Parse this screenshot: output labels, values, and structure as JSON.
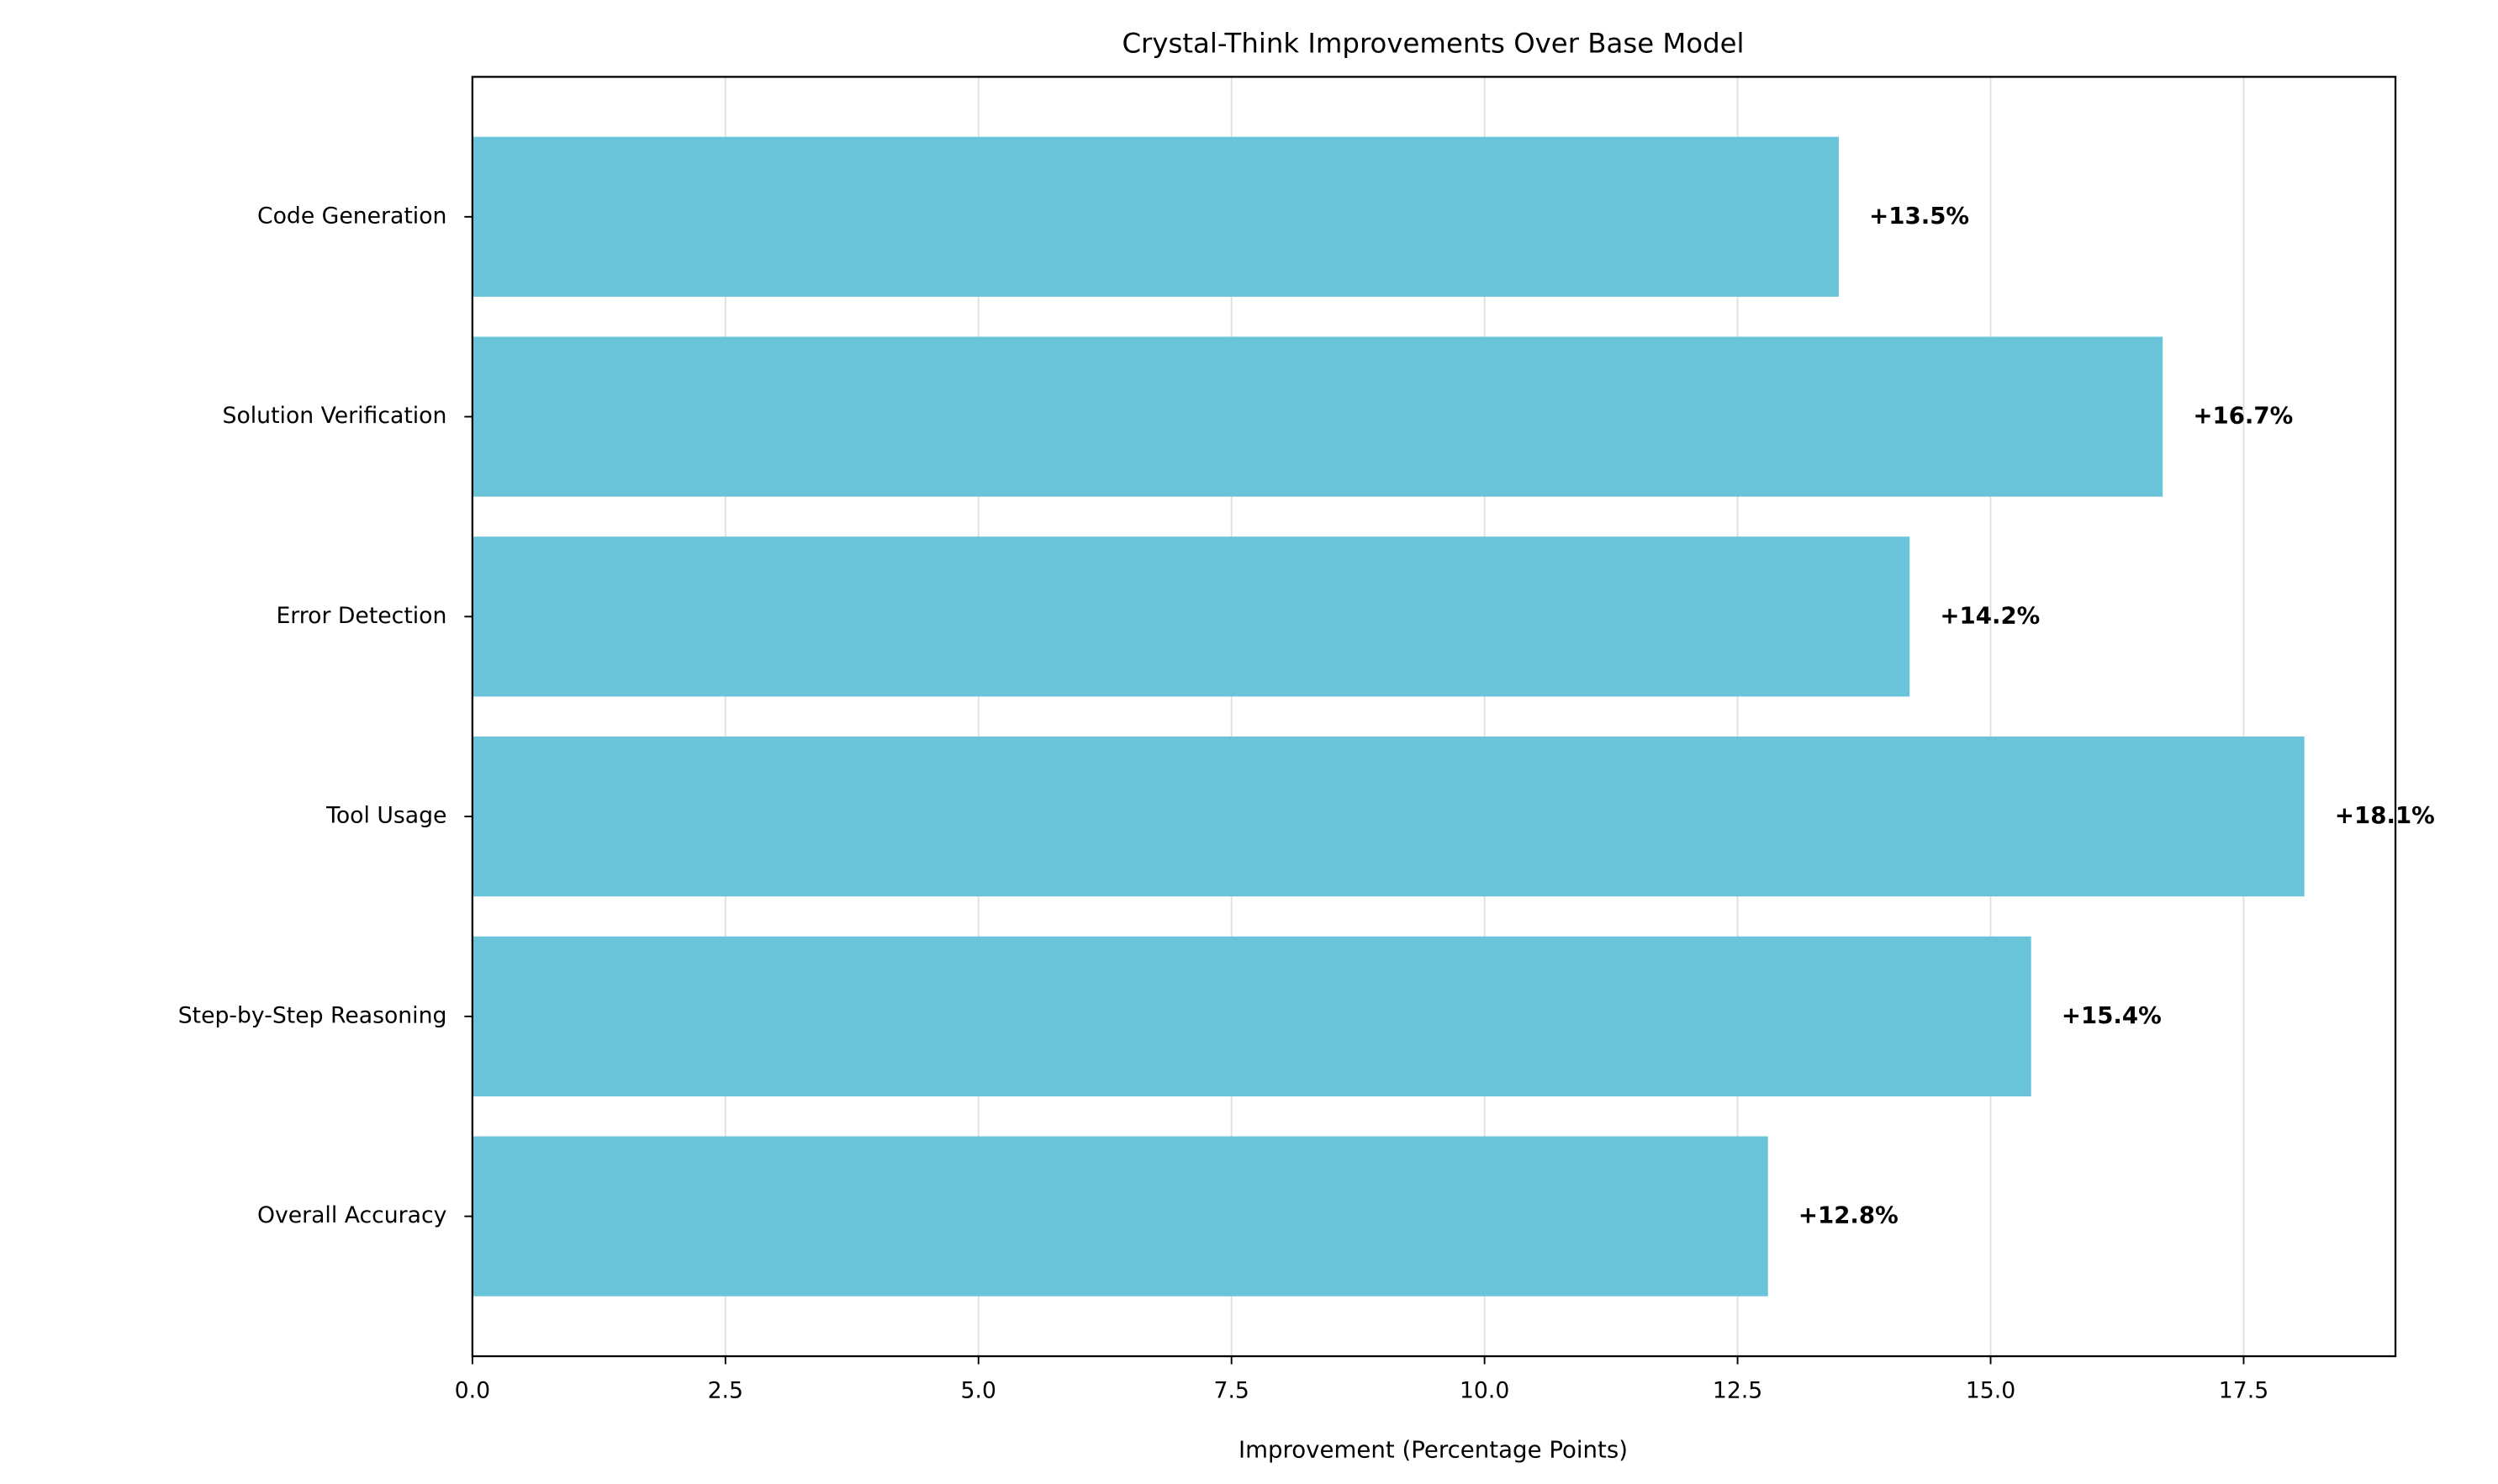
{
  "chart_data": {
    "type": "hbar",
    "title": "Crystal-Think Improvements Over Base Model",
    "x_label": "Improvement (Percentage Points)",
    "categories": [
      "Overall Accuracy",
      "Step-by-Step Reasoning",
      "Tool Usage",
      "Error Detection",
      "Solution Verification",
      "Code Generation"
    ],
    "values": [
      12.8,
      15.4,
      18.1,
      14.2,
      16.7,
      13.5
    ],
    "value_labels": [
      "+12.8%",
      "+15.4%",
      "+18.1%",
      "+14.2%",
      "+16.7%",
      "+13.5%"
    ],
    "color": "#6ac4d9",
    "xlim": [
      0,
      19.0
    ],
    "xticks": [
      0.0,
      2.5,
      5.0,
      7.5,
      10.0,
      12.5,
      15.0,
      17.5
    ],
    "grid": true
  }
}
